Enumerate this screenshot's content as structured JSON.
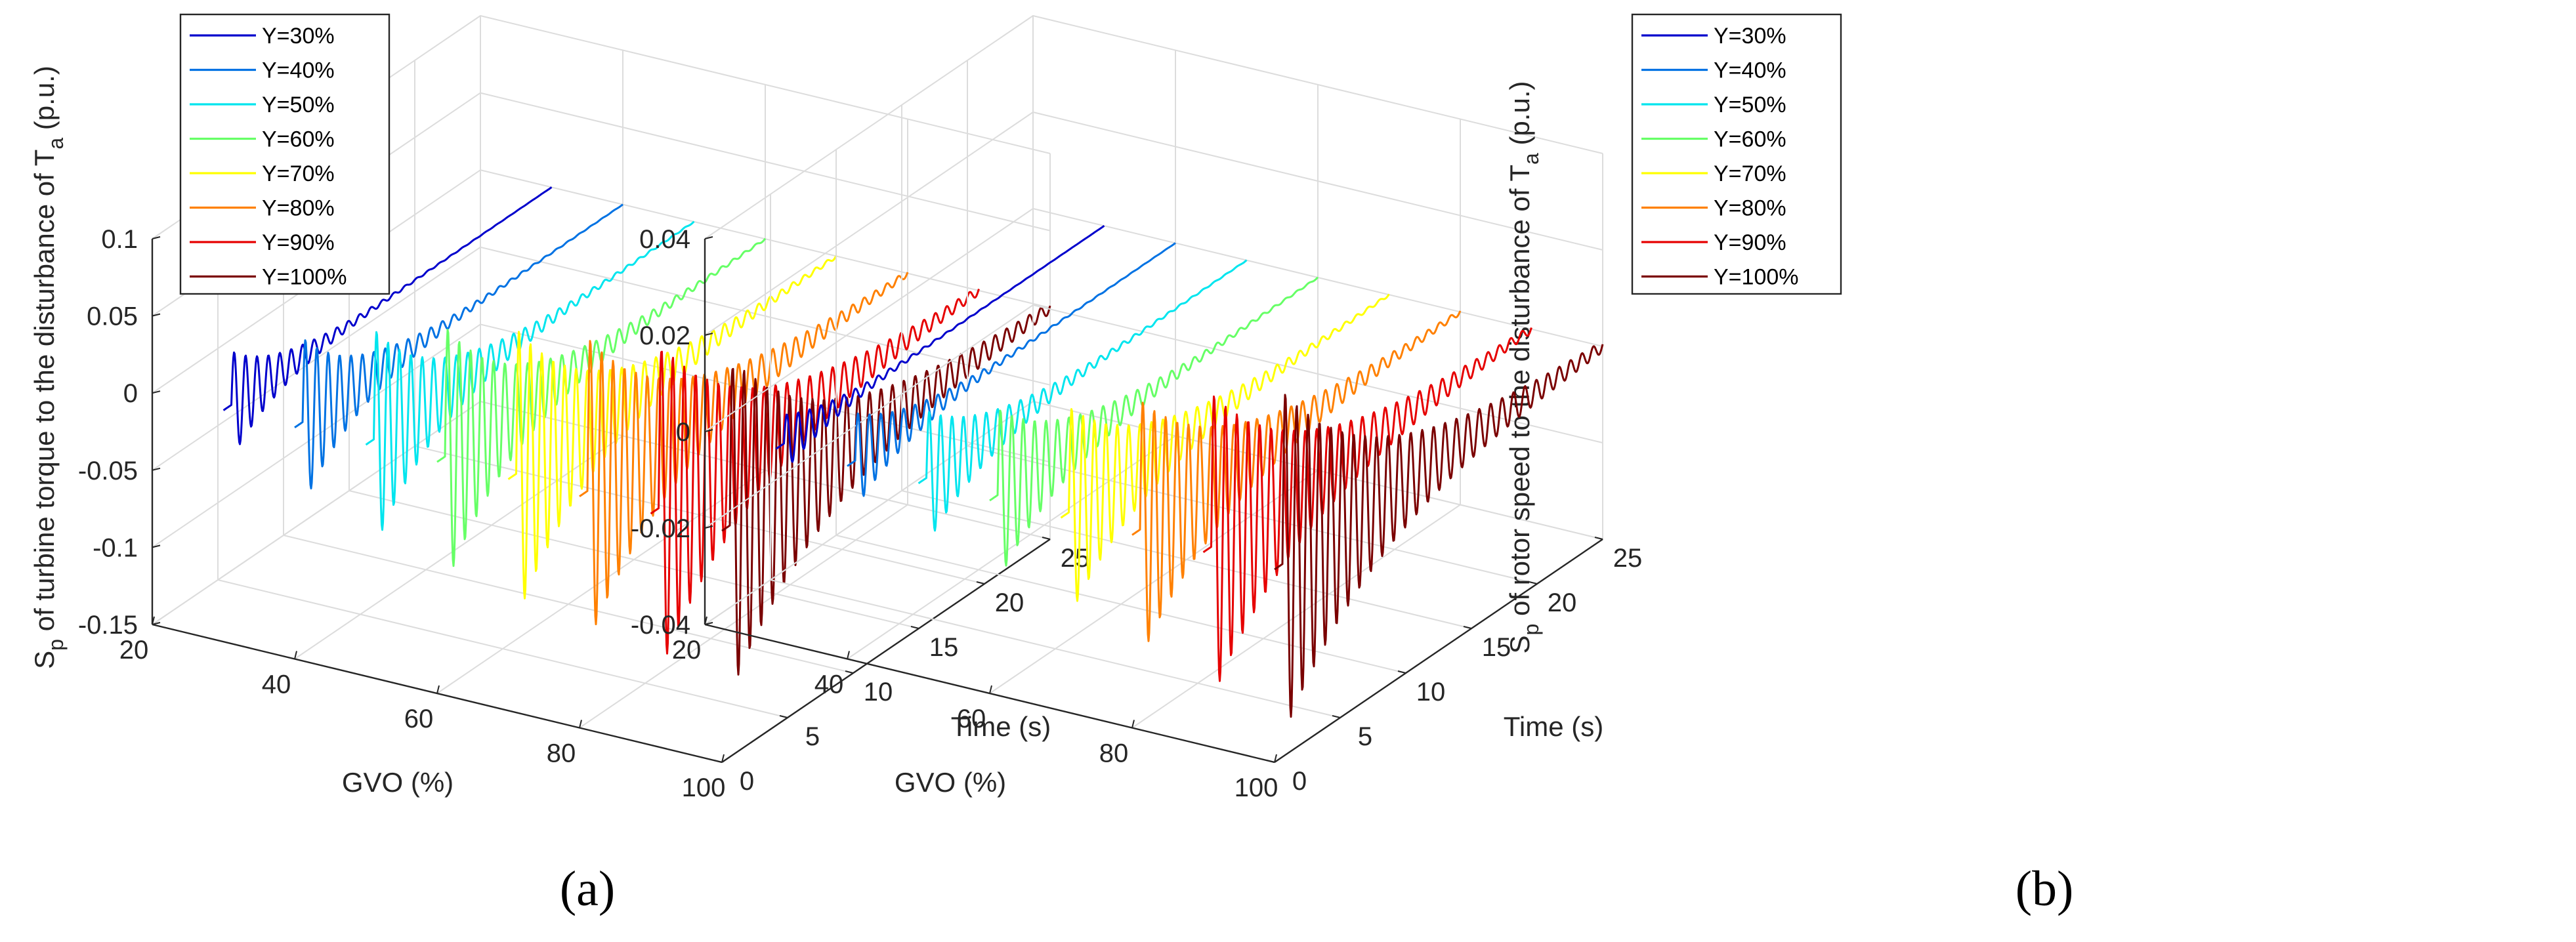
{
  "chart_data": [
    {
      "type": "line",
      "panel_label": "(a)",
      "zlabel_prefix": "S",
      "zlabel_sub": "p",
      "zlabel_mid": " of turbine torque to the disturbance of T",
      "zlabel_sub2": "a",
      "zlabel_suffix": " (p.u.)",
      "xlabel": "GVO (%)",
      "ylabel": "Time (s)",
      "xlim": [
        20,
        100
      ],
      "ylim": [
        0,
        25
      ],
      "zlim": [
        -0.15,
        0.1
      ],
      "xticks": [
        "20",
        "40",
        "60",
        "80",
        "100"
      ],
      "yticks": [
        "0",
        "5",
        "10",
        "15",
        "20",
        "25"
      ],
      "zticks": [
        "-0.15",
        "-0.1",
        "-0.05",
        "0",
        "0.05",
        "0.1"
      ],
      "zticks_values": [
        -0.15,
        -0.1,
        -0.05,
        0,
        0.05,
        0.1
      ],
      "grid": true,
      "legend_position": "top-left",
      "series": [
        {
          "name": "Y=30%",
          "color": "#0000cc",
          "gvo": 30,
          "amplitude": 0.035,
          "decay": 0.28,
          "freq": 1.15
        },
        {
          "name": "Y=40%",
          "color": "#0072e3",
          "gvo": 40,
          "amplitude": 0.055,
          "decay": 0.25,
          "freq": 1.15
        },
        {
          "name": "Y=50%",
          "color": "#00e5ee",
          "gvo": 50,
          "amplitude": 0.072,
          "decay": 0.22,
          "freq": 1.15
        },
        {
          "name": "Y=60%",
          "color": "#66ff66",
          "gvo": 60,
          "amplitude": 0.085,
          "decay": 0.2,
          "freq": 1.15
        },
        {
          "name": "Y=70%",
          "color": "#ffff00",
          "gvo": 70,
          "amplitude": 0.095,
          "decay": 0.18,
          "freq": 1.15
        },
        {
          "name": "Y=80%",
          "color": "#ff8000",
          "gvo": 80,
          "amplitude": 0.1,
          "decay": 0.16,
          "freq": 1.15
        },
        {
          "name": "Y=90%",
          "color": "#e60000",
          "gvo": 90,
          "amplitude": 0.108,
          "decay": 0.15,
          "freq": 1.15
        },
        {
          "name": "Y=100%",
          "color": "#7a0000",
          "gvo": 100,
          "amplitude": 0.11,
          "decay": 0.14,
          "freq": 1.15
        }
      ]
    },
    {
      "type": "line",
      "panel_label": "(b)",
      "zlabel_prefix": "S",
      "zlabel_sub": "p",
      "zlabel_mid": " of rotor speed to the disturbance of T",
      "zlabel_sub2": "a",
      "zlabel_suffix": " (p.u.)",
      "xlabel": "GVO (%)",
      "ylabel": "Time (s)",
      "xlim": [
        20,
        100
      ],
      "ylim": [
        0,
        25
      ],
      "zlim": [
        -0.04,
        0.04
      ],
      "xticks": [
        "20",
        "40",
        "60",
        "80",
        "100"
      ],
      "yticks": [
        "0",
        "5",
        "10",
        "15",
        "20",
        "25"
      ],
      "zticks": [
        "-0.04",
        "-0.02",
        "0",
        "0.02",
        "0.04"
      ],
      "zticks_values": [
        -0.04,
        -0.02,
        0,
        0.02,
        0.04
      ],
      "grid": true,
      "legend_position": "top-left",
      "series": [
        {
          "name": "Y=30%",
          "color": "#0000cc",
          "gvo": 30,
          "amplitude": 0.006,
          "decay": 0.28,
          "freq": 1.15
        },
        {
          "name": "Y=40%",
          "color": "#0072e3",
          "gvo": 40,
          "amplitude": 0.01,
          "decay": 0.25,
          "freq": 1.15
        },
        {
          "name": "Y=50%",
          "color": "#00e5ee",
          "gvo": 50,
          "amplitude": 0.014,
          "decay": 0.22,
          "freq": 1.15
        },
        {
          "name": "Y=60%",
          "color": "#66ff66",
          "gvo": 60,
          "amplitude": 0.018,
          "decay": 0.2,
          "freq": 1.15
        },
        {
          "name": "Y=70%",
          "color": "#ffff00",
          "gvo": 70,
          "amplitude": 0.022,
          "decay": 0.18,
          "freq": 1.15
        },
        {
          "name": "Y=80%",
          "color": "#ff8000",
          "gvo": 80,
          "amplitude": 0.027,
          "decay": 0.16,
          "freq": 1.15
        },
        {
          "name": "Y=90%",
          "color": "#e60000",
          "gvo": 90,
          "amplitude": 0.032,
          "decay": 0.15,
          "freq": 1.15
        },
        {
          "name": "Y=100%",
          "color": "#7a0000",
          "gvo": 100,
          "amplitude": 0.036,
          "decay": 0.14,
          "freq": 1.15
        }
      ]
    }
  ]
}
